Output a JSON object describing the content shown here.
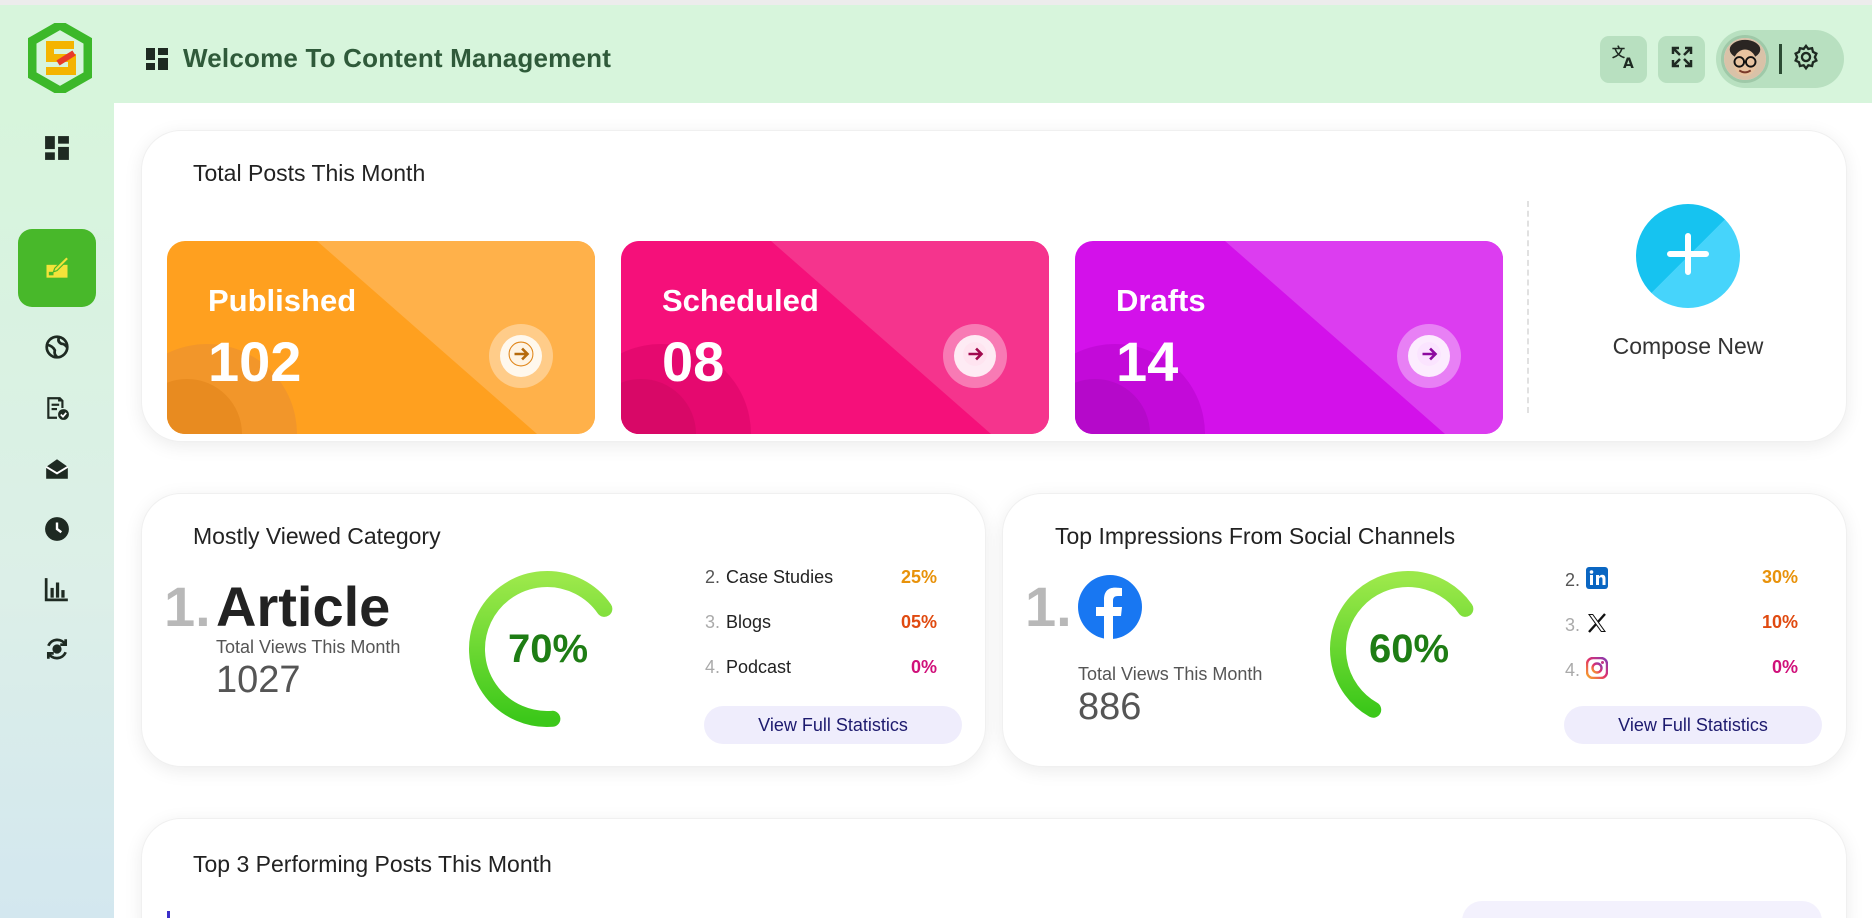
{
  "header": {
    "title": "Welcome To Content Management",
    "icons": [
      "translate-icon",
      "fullscreen-icon",
      "avatar",
      "settings-icon"
    ]
  },
  "sidebar": {
    "items": [
      {
        "icon": "dashboard-icon",
        "active": false
      },
      {
        "icon": "compose-icon",
        "active": true
      },
      {
        "icon": "globe-icon",
        "active": false
      },
      {
        "icon": "report-check-icon",
        "active": false
      },
      {
        "icon": "mail-open-icon",
        "active": false
      },
      {
        "icon": "clock-icon",
        "active": false
      },
      {
        "icon": "bar-chart-icon",
        "active": false
      },
      {
        "icon": "sync-settings-icon",
        "active": false
      }
    ]
  },
  "total_posts": {
    "title": "Total Posts This Month",
    "cards": [
      {
        "label": "Published",
        "value": "102",
        "color": "#ffa01f"
      },
      {
        "label": "Scheduled",
        "value": "08",
        "color": "#f5107a"
      },
      {
        "label": "Drafts",
        "value": "14",
        "color": "#d311ea"
      }
    ],
    "compose_label": "Compose New"
  },
  "category": {
    "title": "Mostly Viewed Category",
    "rank": "1.",
    "name": "Article",
    "views_label": "Total Views This Month",
    "views": "1027",
    "percent": "70%",
    "percent_value": 70,
    "list": [
      {
        "rank": "2.",
        "name": "Case Studies",
        "pct": "25%",
        "color": "#e8920a"
      },
      {
        "rank": "3.",
        "name": "Blogs",
        "pct": "05%",
        "color": "#e04a10"
      },
      {
        "rank": "4.",
        "name": "Podcast",
        "pct": "0%",
        "color": "#d0107a"
      }
    ],
    "button": "View Full Statistics"
  },
  "social": {
    "title": "Top Impressions From Social Channels",
    "rank": "1.",
    "top_icon": "facebook-icon",
    "views_label": "Total Views This Month",
    "views": "886",
    "percent": "60%",
    "percent_value": 60,
    "list": [
      {
        "rank": "2.",
        "icon": "linkedin-icon",
        "pct": "30%",
        "color": "#e8920a"
      },
      {
        "rank": "3.",
        "icon": "x-icon",
        "pct": "10%",
        "color": "#e04a10"
      },
      {
        "rank": "4.",
        "icon": "instagram-icon",
        "pct": "0%",
        "color": "#d0107a"
      }
    ],
    "button": "View Full Statistics"
  },
  "top_posts": {
    "title": "Top 3 Performing Posts This Month"
  }
}
